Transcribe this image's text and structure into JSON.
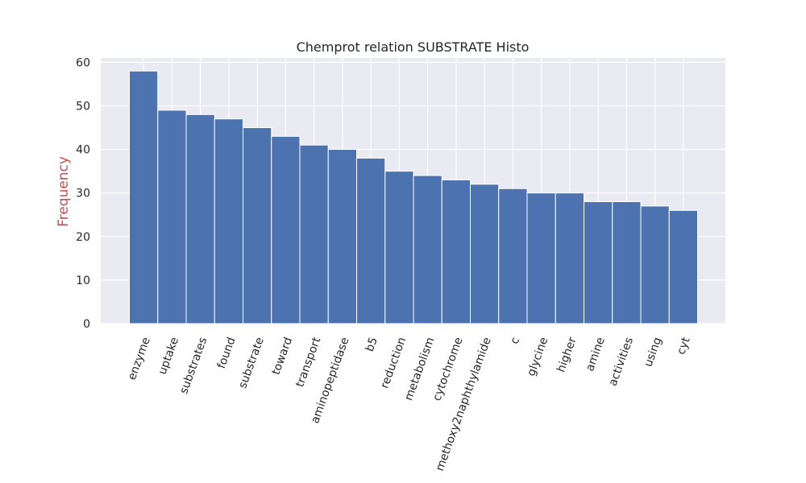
{
  "chart_data": {
    "type": "bar",
    "title": "Chemprot relation SUBSTRATE Histo",
    "xlabel": "",
    "ylabel": "Frequency",
    "ylabel_color": "#c44e52",
    "bar_color": "#4c72b0",
    "background_color": "#eaeaf2",
    "grid": true,
    "ylim": [
      0,
      61
    ],
    "yticks": [
      0,
      10,
      20,
      30,
      40,
      50,
      60
    ],
    "categories": [
      "enzyme",
      "uptake",
      "substrates",
      "found",
      "substrate",
      "toward",
      "transport",
      "aminopeptidase",
      "b5",
      "reduction",
      "metabolism",
      "cytochrome",
      "methoxy2naphthylamide",
      "c",
      "glycine",
      "higher",
      "amine",
      "activities",
      "using",
      "cyt"
    ],
    "values": [
      58,
      49,
      48,
      47,
      45,
      43,
      41,
      40,
      38,
      35,
      34,
      33,
      32,
      31,
      30,
      30,
      28,
      28,
      27,
      26
    ]
  }
}
